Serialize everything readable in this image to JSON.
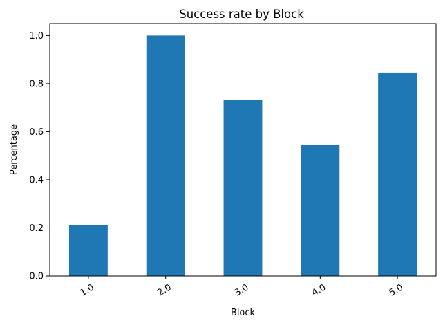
{
  "chart_data": {
    "type": "bar",
    "title": "Success rate by Block",
    "xlabel": "Block",
    "ylabel": "Percentage",
    "categories": [
      "1.0",
      "2.0",
      "3.0",
      "4.0",
      "5.0"
    ],
    "values": [
      0.21,
      1.0,
      0.733,
      0.545,
      0.846
    ],
    "ylim": [
      0,
      1.05
    ],
    "yticks": [
      "0.0",
      "0.2",
      "0.4",
      "0.6",
      "0.8",
      "1.0"
    ],
    "bar_color": "#1f77b4",
    "grid": false,
    "legend": "none",
    "xtick_rotation": "30 degrees"
  }
}
